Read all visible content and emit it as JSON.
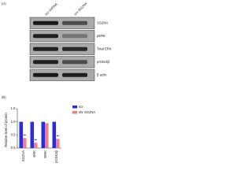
{
  "panel_a": {
    "label": "(A)",
    "columns": [
      "scr shRNA",
      "shr SG2NA"
    ],
    "rows": [
      "SG2NA",
      "pERK",
      "Total ERK",
      "pGSK3β",
      "β actin"
    ]
  },
  "chart_data": {
    "type": "bar",
    "panel_label": "(B)",
    "y_label": "Relative level of protein",
    "categories": [
      "SG2NA",
      "ERK",
      "tERK",
      "pGSK3β"
    ],
    "series": [
      {
        "name": "scr",
        "color": "#2b2bd9",
        "values": [
          1,
          1,
          1,
          1
        ]
      },
      {
        "name": "shr SG2NA",
        "color": "#f07f86",
        "values": [
          0.38,
          0.2,
          0.95,
          0.35
        ]
      }
    ],
    "significance": [
      "**",
      "**",
      null,
      "**"
    ],
    "ylim": [
      0,
      1.5
    ],
    "yticks": [
      {
        "value": 0,
        "label": "0.0"
      },
      {
        "value": 0.5,
        "label": "0.5"
      },
      {
        "value": 1,
        "label": "1.0"
      },
      {
        "value": 1.5,
        "label": "1.5"
      }
    ],
    "legend": "upper right"
  }
}
